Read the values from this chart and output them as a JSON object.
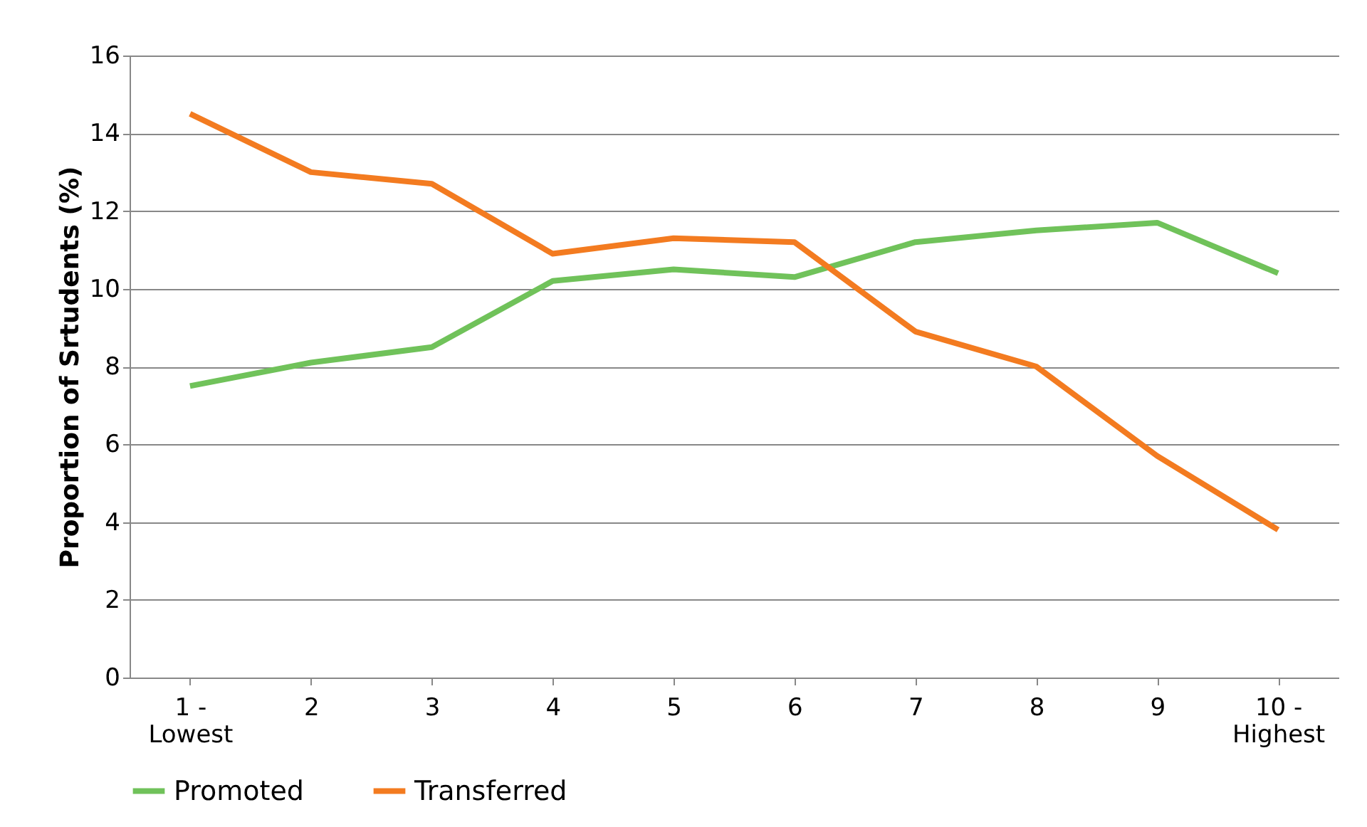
{
  "chart_data": {
    "type": "line",
    "ylabel": "Proportion of Srtudents (%)",
    "categories": [
      "1 -\nLowest",
      "2",
      "3",
      "4",
      "5",
      "6",
      "7",
      "8",
      "9",
      "10 -\nHighest"
    ],
    "series": [
      {
        "name": "Promoted",
        "color": "#70c25a",
        "values": [
          7.5,
          8.1,
          8.5,
          10.2,
          10.5,
          10.3,
          11.2,
          11.5,
          11.7,
          10.4
        ]
      },
      {
        "name": "Transferred",
        "color": "#f37b20",
        "values": [
          14.5,
          13.0,
          12.7,
          10.9,
          11.3,
          11.2,
          8.9,
          8.0,
          5.7,
          3.8
        ]
      }
    ],
    "ylim": [
      0,
      16
    ],
    "yticks": [
      0,
      2,
      4,
      6,
      8,
      10,
      12,
      14,
      16
    ],
    "grid": "y",
    "legend": "bottom",
    "marker": "none",
    "line_style": "solid"
  }
}
